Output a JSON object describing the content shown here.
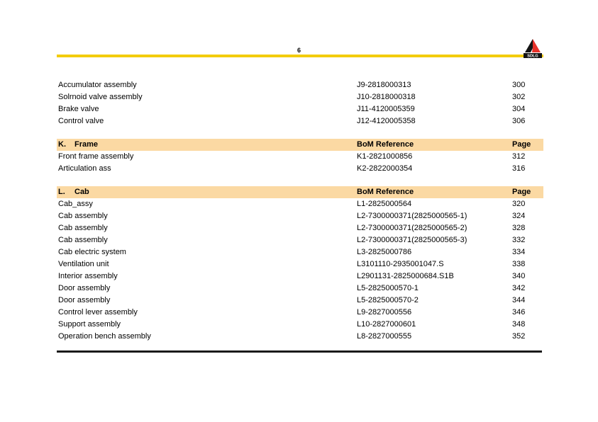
{
  "page": {
    "number": "6",
    "logo": {
      "brand": "SDLG"
    },
    "colors": {
      "rule_yellow": "#F3CC0B",
      "section_bar": "#FBD9A3",
      "logo_red": "#E8312A",
      "logo_black": "#141414"
    }
  },
  "table": {
    "sections": [
      {
        "letter": "",
        "title": "",
        "bom_label": "",
        "page_label": "",
        "show_header": false,
        "rows": [
          {
            "name": "Accumulator assembly",
            "ref": "J9-2818000313",
            "page": "300"
          },
          {
            "name": "Solrnoid valve assembly",
            "ref": "J10-2818000318",
            "page": "302"
          },
          {
            "name": "Brake valve",
            "ref": "J11-4120005359",
            "page": "304"
          },
          {
            "name": "Control valve",
            "ref": "J12-4120005358",
            "page": "306"
          }
        ]
      },
      {
        "letter": "K.",
        "title": "Frame",
        "bom_label": "BoM Reference",
        "page_label": "Page",
        "show_header": true,
        "rows": [
          {
            "name": "Front frame assembly",
            "ref": "K1-2821000856",
            "page": "312"
          },
          {
            "name": "Articulation ass",
            "ref": "K2-2822000354",
            "page": "316"
          }
        ]
      },
      {
        "letter": "L.",
        "title": "Cab",
        "bom_label": "BoM Reference",
        "page_label": "Page",
        "show_header": true,
        "rows": [
          {
            "name": "Cab_assy",
            "ref": "L1-2825000564",
            "page": "320"
          },
          {
            "name": "Cab assembly",
            "ref": "L2-7300000371(2825000565-1)",
            "page": "324"
          },
          {
            "name": "Cab assembly",
            "ref": "L2-7300000371(2825000565-2)",
            "page": "328"
          },
          {
            "name": "Cab assembly",
            "ref": "L2-7300000371(2825000565-3)",
            "page": "332"
          },
          {
            "name": "Cab electric system",
            "ref": "L3-2825000786",
            "page": "334"
          },
          {
            "name": "Ventilation unit",
            "ref": "L3101110-2935001047.S",
            "page": "338"
          },
          {
            "name": "Interior assembly",
            "ref": "L2901131-2825000684.S1B",
            "page": "340"
          },
          {
            "name": "Door assembly",
            "ref": "L5-2825000570-1",
            "page": "342"
          },
          {
            "name": "Door assembly",
            "ref": "L5-2825000570-2",
            "page": "344"
          },
          {
            "name": "Control lever assembly",
            "ref": "L9-2827000556",
            "page": "346"
          },
          {
            "name": "Support assembly",
            "ref": "L10-2827000601",
            "page": "348"
          },
          {
            "name": "Operation bench assembly",
            "ref": "L8-2827000555",
            "page": "352"
          }
        ]
      }
    ]
  }
}
